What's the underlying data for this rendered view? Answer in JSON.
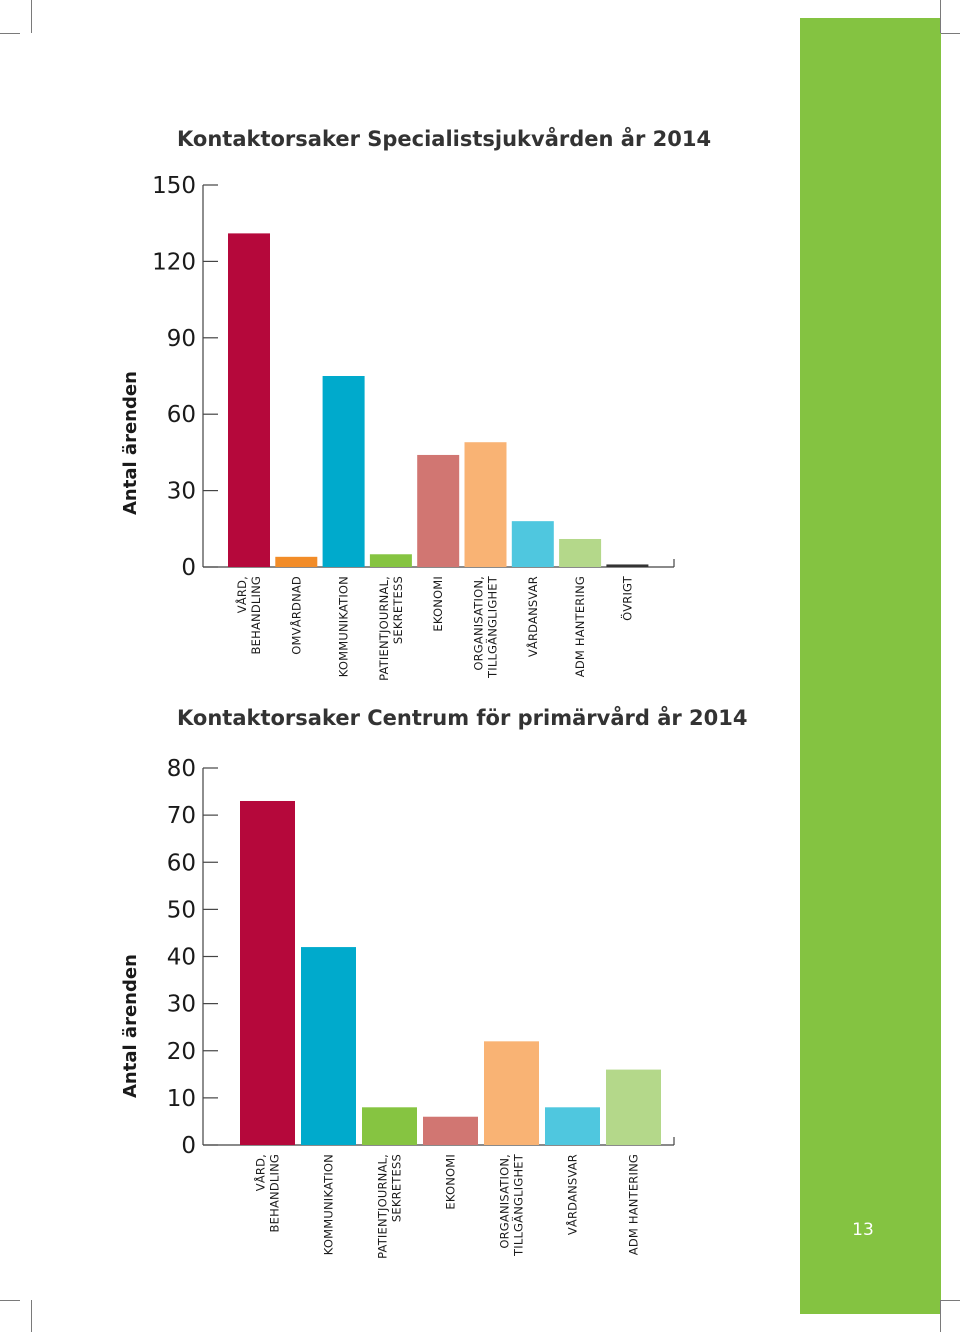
{
  "page": {
    "page_number": "13"
  },
  "colors": {
    "accent_green": "#84c341",
    "crimson": "#b5083b",
    "orange": "#f28c28",
    "cyan": "#00aacc",
    "green": "#86c441",
    "rose": "#d17672",
    "peach": "#f9b374",
    "light_cyan": "#4fc7df",
    "light_green": "#b4d88a",
    "dark": "#333333"
  },
  "chart_data": [
    {
      "type": "bar",
      "title": "Kontaktorsaker Specialistsjukvården år 2014",
      "ylabel": "Antal ärenden",
      "xlabel": "",
      "ylim": [
        0,
        150
      ],
      "yticks": [
        "0",
        "30",
        "60",
        "90",
        "120",
        "150"
      ],
      "categories": [
        [
          "VÅRD,",
          "BEHANDLING"
        ],
        [
          "OMVÅRDNAD"
        ],
        [
          "KOMMUNIKATION"
        ],
        [
          "PATIENTJOURNAL,",
          "SEKRETESS"
        ],
        [
          "EKONOMI"
        ],
        [
          "ORGANISATION,",
          "TILLGÄNGLIGHET"
        ],
        [
          "VÅRDANSVAR"
        ],
        [
          "ADM HANTERING"
        ],
        [
          "ÖVRIGT"
        ]
      ],
      "values": [
        131,
        4,
        75,
        5,
        44,
        49,
        18,
        11,
        1
      ],
      "colors": [
        "#b5083b",
        "#f28c28",
        "#00aacc",
        "#86c441",
        "#d17672",
        "#f9b374",
        "#4fc7df",
        "#b4d88a",
        "#333333"
      ]
    },
    {
      "type": "bar",
      "title": "Kontaktorsaker Centrum för primärvård år 2014",
      "ylabel": "Antal ärenden",
      "xlabel": "",
      "ylim": [
        0,
        80
      ],
      "yticks": [
        "0",
        "10",
        "20",
        "30",
        "40",
        "50",
        "60",
        "70",
        "80"
      ],
      "categories": [
        [
          "VÅRD,",
          "BEHANDLING"
        ],
        [
          "KOMMUNIKATION"
        ],
        [
          "PATIENTJOURNAL,",
          "SEKRETESS"
        ],
        [
          "EKONOMI"
        ],
        [
          "ORGANISATION,",
          "TILLGÄNGLIGHET"
        ],
        [
          "VÅRDANSVAR"
        ],
        [
          "ADM HANTERING"
        ]
      ],
      "values": [
        73,
        42,
        8,
        6,
        22,
        8,
        16
      ],
      "colors": [
        "#b5083b",
        "#00aacc",
        "#86c441",
        "#d17672",
        "#f9b374",
        "#4fc7df",
        "#b4d88a"
      ]
    }
  ]
}
